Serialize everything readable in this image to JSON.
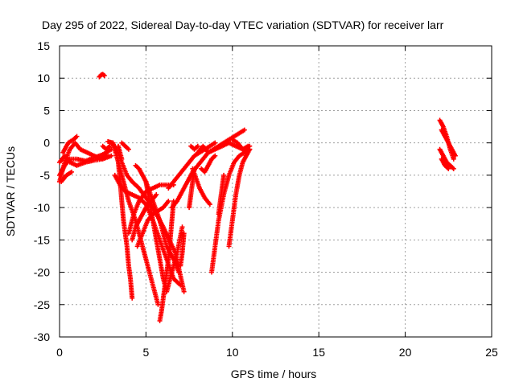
{
  "chart_data": {
    "type": "scatter",
    "title": "Day 295 of 2022, Sidereal Day-to-day VTEC variation (SDTVAR) for receiver larr",
    "xlabel": "GPS time / hours",
    "ylabel": "SDTVAR / TECUs",
    "xlim": [
      0,
      25
    ],
    "ylim": [
      -30,
      15
    ],
    "xticks": [
      "0",
      "5",
      "10",
      "15",
      "20",
      "25"
    ],
    "yticks": [
      "15",
      "10",
      "5",
      "0",
      "-5",
      "-10",
      "-15",
      "-20",
      "-25",
      "-30"
    ],
    "grid": true,
    "marker": "plus",
    "marker_color": "#ff0000",
    "tracks": [
      {
        "x": [
          0.0,
          0.3,
          0.6,
          0.9,
          1.2,
          1.6,
          2.0,
          2.4,
          2.8
        ],
        "y": [
          -6,
          -3,
          -1,
          0,
          -1,
          -1.5,
          -2,
          -2.5,
          -2
        ]
      },
      {
        "x": [
          0.0,
          0.3,
          0.6,
          1.0,
          1.5,
          2.0,
          2.5,
          3.0
        ],
        "y": [
          -5,
          -3.5,
          -2.5,
          -2.5,
          -2.8,
          -2.3,
          -1.8,
          -1
        ]
      },
      {
        "x": [
          0.0,
          0.3,
          0.6,
          1.0,
          1.5,
          2.0,
          2.5,
          3.0
        ],
        "y": [
          -3,
          -2,
          -3,
          -3.5,
          -3,
          -2.7,
          -2.5,
          -2
        ]
      },
      {
        "x": [
          0.1,
          0.4,
          0.7
        ],
        "y": [
          -6,
          -5,
          -4.5
        ]
      },
      {
        "x": [
          0.2,
          0.5,
          0.8,
          1.0
        ],
        "y": [
          -1.5,
          0.0,
          0.5,
          1.0
        ]
      },
      {
        "x": [
          2.3,
          2.4,
          2.5,
          2.6
        ],
        "y": [
          10.2,
          10.5,
          10.6,
          10.4
        ]
      },
      {
        "x": [
          2.5,
          2.7,
          2.9
        ],
        "y": [
          -0.5,
          -1.0,
          -0.5
        ]
      },
      {
        "x": [
          2.8,
          3.1,
          3.4,
          3.7,
          4.0,
          4.4,
          4.8,
          5.2,
          5.7
        ],
        "y": [
          0.2,
          0.0,
          -3,
          -6,
          -9,
          -12,
          -16,
          -20,
          -25
        ]
      },
      {
        "x": [
          3.0,
          3.3,
          3.6,
          3.9,
          4.2,
          4.6,
          5.0,
          5.4,
          6.0,
          6.7,
          7.2
        ],
        "y": [
          0.0,
          -1,
          -3,
          -5,
          -6,
          -7,
          -8.5,
          -10,
          -13,
          -17,
          -23
        ]
      },
      {
        "x": [
          3.2,
          3.4,
          3.5,
          3.6,
          3.7,
          3.8,
          3.9,
          4.0,
          4.1,
          4.2
        ],
        "y": [
          -1,
          -3,
          -6,
          -9,
          -12,
          -14,
          -16,
          -19,
          -21,
          -24
        ]
      },
      {
        "x": [
          3.4,
          3.5,
          3.6
        ],
        "y": [
          -0.5,
          -1.5,
          -2.5
        ]
      },
      {
        "x": [
          3.6,
          3.8,
          4.0
        ],
        "y": [
          0.0,
          -0.5,
          -1.0
        ]
      },
      {
        "x": [
          3.2,
          3.5,
          3.8,
          4.2,
          4.6,
          5.0,
          5.4,
          5.8,
          6.2,
          6.6,
          7.0
        ],
        "y": [
          -5,
          -6.5,
          -7.5,
          -8,
          -8.5,
          -9.5,
          -12,
          -15,
          -18,
          -21,
          -22
        ]
      },
      {
        "x": [
          4.0,
          4.3,
          4.6,
          5.0,
          5.4,
          5.8,
          6.2,
          6.6
        ],
        "y": [
          -14,
          -11,
          -9,
          -7.5,
          -7,
          -6.5,
          -6.5,
          -6.5
        ]
      },
      {
        "x": [
          4.2,
          4.4,
          4.6,
          4.8,
          5.0,
          5.3,
          5.6
        ],
        "y": [
          -15,
          -13,
          -12,
          -11,
          -10,
          -9,
          -8
        ]
      },
      {
        "x": [
          4.4,
          4.6,
          4.8,
          5.0,
          5.4,
          5.8,
          6.2,
          6.6,
          6.9
        ],
        "y": [
          -3.5,
          -4,
          -5,
          -6,
          -9,
          -12,
          -16,
          -18,
          -20
        ]
      },
      {
        "x": [
          4.5,
          4.8,
          5.1,
          5.4,
          5.7,
          6.0,
          6.3
        ],
        "y": [
          -16,
          -14,
          -12,
          -11,
          -10.5,
          -10,
          -9
        ]
      },
      {
        "x": [
          5.0,
          5.2,
          5.4,
          5.6,
          5.8,
          6.0,
          6.2,
          6.5,
          6.8,
          7.1
        ],
        "y": [
          -6,
          -9,
          -12,
          -15,
          -18,
          -21,
          -23,
          -20,
          -17,
          -13
        ]
      },
      {
        "x": [
          5.8,
          5.9,
          6.0,
          6.1,
          6.2,
          6.3,
          6.4,
          6.5,
          6.6
        ],
        "y": [
          -27.5,
          -26,
          -24,
          -22,
          -20,
          -18,
          -15,
          -12,
          -9
        ]
      },
      {
        "x": [
          6.3,
          6.6,
          6.9,
          7.2,
          7.5,
          7.8,
          8.1,
          8.4,
          8.7,
          9.0
        ],
        "y": [
          -7,
          -6,
          -5,
          -4,
          -3,
          -2,
          -1.5,
          -1,
          -0.5,
          0.0
        ]
      },
      {
        "x": [
          6.5,
          6.8,
          7.1,
          7.4,
          7.7,
          8.0,
          8.3,
          8.6,
          8.9,
          9.2,
          9.5,
          9.8,
          10.1,
          10.4,
          10.7
        ],
        "y": [
          -10,
          -9,
          -7.5,
          -6,
          -4.5,
          -3.5,
          -2.5,
          -1.5,
          -1,
          -0.5,
          0.0,
          0.5,
          1.0,
          1.5,
          2.0
        ]
      },
      {
        "x": [
          7.0,
          7.1,
          7.2
        ],
        "y": [
          -19,
          -17,
          -14
        ]
      },
      {
        "x": [
          7.5,
          7.6,
          7.7,
          7.8
        ],
        "y": [
          -10,
          -8,
          -6,
          -4
        ]
      },
      {
        "x": [
          7.6,
          7.8,
          8.0
        ],
        "y": [
          -0.5,
          -1.0,
          -0.5
        ]
      },
      {
        "x": [
          7.7,
          7.9,
          8.1,
          8.4,
          8.7
        ],
        "y": [
          -4,
          -5.5,
          -7,
          -8.5,
          -9.5
        ]
      },
      {
        "x": [
          8.2,
          8.4,
          8.6,
          8.8,
          9.0
        ],
        "y": [
          -4,
          -4.5,
          -3.5,
          -2.5,
          -2
        ]
      },
      {
        "x": [
          8.0,
          8.3,
          8.6,
          9.0,
          9.4,
          9.8,
          10.2,
          10.6,
          11.0
        ],
        "y": [
          -1.5,
          -0.5,
          -1.5,
          -1,
          -0.5,
          0.0,
          -0.5,
          -1,
          -0.5
        ]
      },
      {
        "x": [
          8.8,
          9.0,
          9.2,
          9.5,
          9.8,
          10.1,
          10.4,
          10.7,
          11.0
        ],
        "y": [
          -20,
          -16,
          -12,
          -8,
          -5,
          -3,
          -2,
          -1.5,
          -1
        ]
      },
      {
        "x": [
          9.2,
          9.3,
          9.4,
          9.5
        ],
        "y": [
          -11,
          -9,
          -7,
          -5
        ]
      },
      {
        "x": [
          9.8,
          10.0,
          10.2,
          10.4,
          10.6,
          10.8,
          11.0
        ],
        "y": [
          -16,
          -12,
          -8,
          -5,
          -3,
          -2,
          -1
        ]
      },
      {
        "x": [
          10.0,
          10.3,
          10.6,
          10.9
        ],
        "y": [
          0.5,
          0.0,
          -1.0,
          -0.5
        ]
      },
      {
        "x": [
          22.0,
          22.2,
          22.4,
          22.6,
          22.8
        ],
        "y": [
          3.5,
          2.5,
          1.0,
          -1,
          -2.5
        ]
      },
      {
        "x": [
          22.1,
          22.3,
          22.5,
          22.7,
          22.9
        ],
        "y": [
          2.0,
          1.0,
          0.0,
          -1,
          -2
        ]
      },
      {
        "x": [
          22.0,
          22.2,
          22.4,
          22.6,
          22.8
        ],
        "y": [
          -1,
          -2,
          -3,
          -3.5,
          -4
        ]
      },
      {
        "x": [
          22.1,
          22.3,
          22.5
        ],
        "y": [
          -2.5,
          -3.5,
          -4
        ]
      }
    ]
  }
}
